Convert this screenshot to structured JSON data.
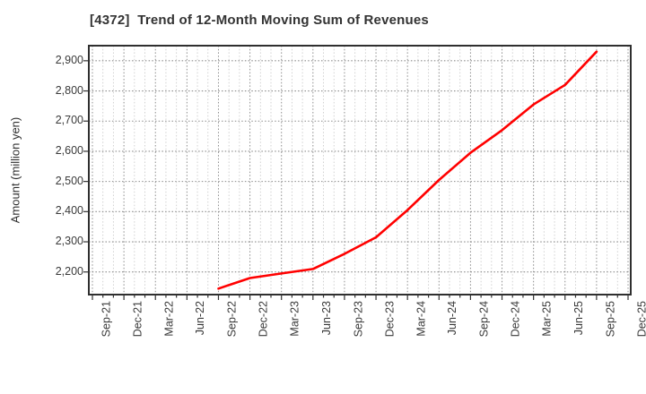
{
  "title": "[4372]  Trend of 12-Month Moving Sum of Revenues",
  "y_axis_title": "Amount (million yen)",
  "chart_data": {
    "type": "line",
    "title": "[4372]  Trend of 12-Month Moving Sum of Revenues",
    "xlabel": "",
    "ylabel": "Amount (million yen)",
    "x_tick_labels": [
      "Sep-21",
      "Dec-21",
      "Mar-22",
      "Jun-22",
      "Sep-22",
      "Dec-22",
      "Mar-23",
      "Jun-23",
      "Sep-23",
      "Dec-23",
      "Mar-24",
      "Jun-24",
      "Sep-24",
      "Dec-24",
      "Mar-25",
      "Jun-25",
      "Sep-25",
      "Dec-25"
    ],
    "y_ticks": [
      2200,
      2300,
      2400,
      2500,
      2600,
      2700,
      2800,
      2900
    ],
    "y_tick_labels": [
      "2,200",
      "2,300",
      "2,400",
      "2,500",
      "2,600",
      "2,700",
      "2,800",
      "2,900"
    ],
    "ylim": [
      2125,
      2950
    ],
    "grid": true,
    "legend_position": "none",
    "series": [
      {
        "name": "12-Month Moving Sum of Revenues",
        "color": "#ff0000",
        "points": [
          {
            "x": "Sep-22",
            "y": 2145
          },
          {
            "x": "Dec-22",
            "y": 2180
          },
          {
            "x": "Mar-23",
            "y": 2195
          },
          {
            "x": "Jun-23",
            "y": 2210
          },
          {
            "x": "Sep-23",
            "y": 2260
          },
          {
            "x": "Dec-23",
            "y": 2315
          },
          {
            "x": "Mar-24",
            "y": 2405
          },
          {
            "x": "Jun-24",
            "y": 2505
          },
          {
            "x": "Sep-24",
            "y": 2595
          },
          {
            "x": "Dec-24",
            "y": 2670
          },
          {
            "x": "Mar-25",
            "y": 2755
          },
          {
            "x": "Jun-25",
            "y": 2820
          },
          {
            "x": "Sep-25",
            "y": 2930
          }
        ]
      }
    ]
  },
  "colors": {
    "line": "#ff0000",
    "plot_border": "#2f2f2f",
    "grid_major": "#8c8c8c",
    "grid_minor": "#cccccc",
    "tick": "#333333",
    "background": "#ffffff",
    "text": "#333333"
  }
}
